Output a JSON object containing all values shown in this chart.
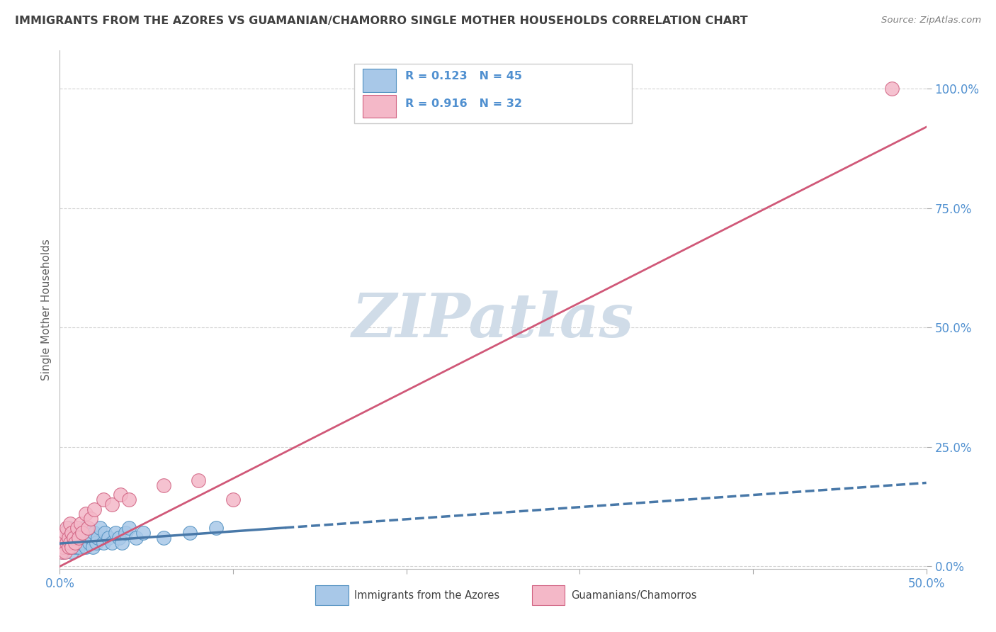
{
  "title": "IMMIGRANTS FROM THE AZORES VS GUAMANIAN/CHAMORRO SINGLE MOTHER HOUSEHOLDS CORRELATION CHART",
  "source": "Source: ZipAtlas.com",
  "ylabel": "Single Mother Households",
  "xlim": [
    0,
    0.5
  ],
  "ylim": [
    -0.005,
    1.08
  ],
  "yticks": [
    0.0,
    0.25,
    0.5,
    0.75,
    1.0
  ],
  "ytick_labels": [
    "0.0%",
    "25.0%",
    "50.0%",
    "75.0%",
    "100.0%"
  ],
  "xticks": [
    0.0,
    0.1,
    0.2,
    0.3,
    0.4,
    0.5
  ],
  "xtick_labels": [
    "0.0%",
    "",
    "",
    "",
    "",
    "50.0%"
  ],
  "blue_R": 0.123,
  "blue_N": 45,
  "pink_R": 0.916,
  "pink_N": 32,
  "blue_color": "#a8c8e8",
  "pink_color": "#f4b8c8",
  "blue_edge_color": "#5090c0",
  "pink_edge_color": "#d06080",
  "blue_line_color": "#4878a8",
  "pink_line_color": "#d05878",
  "watermark_color": "#d0dce8",
  "background_color": "#ffffff",
  "grid_color": "#c8c8c8",
  "title_color": "#404040",
  "tick_label_color": "#5090d0",
  "source_color": "#808080",
  "ylabel_color": "#606060",
  "blue_scatter_x": [
    0.001,
    0.002,
    0.002,
    0.003,
    0.003,
    0.004,
    0.004,
    0.005,
    0.005,
    0.006,
    0.006,
    0.007,
    0.008,
    0.008,
    0.009,
    0.009,
    0.01,
    0.011,
    0.011,
    0.012,
    0.013,
    0.014,
    0.015,
    0.016,
    0.017,
    0.018,
    0.019,
    0.02,
    0.021,
    0.022,
    0.023,
    0.025,
    0.026,
    0.028,
    0.03,
    0.032,
    0.034,
    0.036,
    0.038,
    0.04,
    0.044,
    0.048,
    0.06,
    0.075,
    0.09
  ],
  "blue_scatter_y": [
    0.04,
    0.03,
    0.06,
    0.05,
    0.07,
    0.04,
    0.06,
    0.05,
    0.08,
    0.04,
    0.06,
    0.03,
    0.07,
    0.05,
    0.04,
    0.06,
    0.05,
    0.07,
    0.04,
    0.06,
    0.05,
    0.08,
    0.04,
    0.07,
    0.05,
    0.06,
    0.04,
    0.07,
    0.05,
    0.06,
    0.08,
    0.05,
    0.07,
    0.06,
    0.05,
    0.07,
    0.06,
    0.05,
    0.07,
    0.08,
    0.06,
    0.07,
    0.06,
    0.07,
    0.08
  ],
  "pink_scatter_x": [
    0.001,
    0.001,
    0.002,
    0.002,
    0.003,
    0.003,
    0.004,
    0.004,
    0.005,
    0.005,
    0.006,
    0.006,
    0.007,
    0.007,
    0.008,
    0.009,
    0.01,
    0.011,
    0.012,
    0.013,
    0.015,
    0.016,
    0.018,
    0.02,
    0.025,
    0.03,
    0.035,
    0.04,
    0.06,
    0.08,
    0.1,
    0.48
  ],
  "pink_scatter_y": [
    0.03,
    0.05,
    0.04,
    0.06,
    0.03,
    0.07,
    0.05,
    0.08,
    0.04,
    0.06,
    0.05,
    0.09,
    0.04,
    0.07,
    0.06,
    0.05,
    0.08,
    0.06,
    0.09,
    0.07,
    0.11,
    0.08,
    0.1,
    0.12,
    0.14,
    0.13,
    0.15,
    0.14,
    0.17,
    0.18,
    0.14,
    1.0
  ],
  "blue_trend_x": [
    0.0,
    0.15,
    0.5
  ],
  "blue_trend_y": [
    0.048,
    0.065,
    0.175
  ],
  "pink_trend_x": [
    0.0,
    0.5
  ],
  "pink_trend_y": [
    0.0,
    0.92
  ]
}
